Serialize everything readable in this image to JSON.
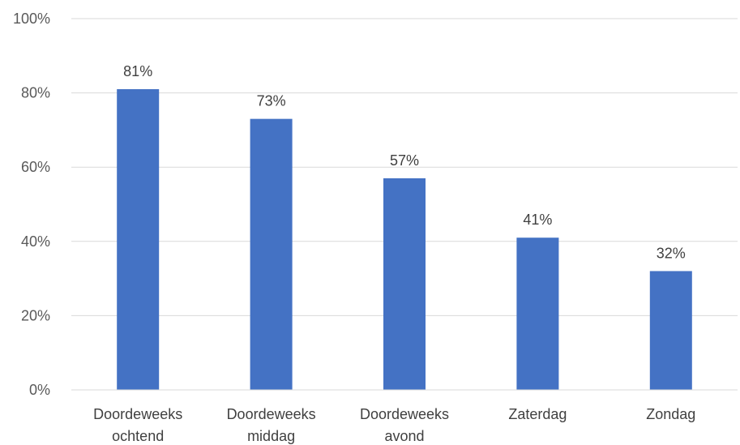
{
  "chart_data": {
    "type": "bar",
    "categories": [
      [
        "Doordeweeks",
        "ochtend"
      ],
      [
        "Doordeweeks",
        "middag"
      ],
      [
        "Doordeweeks",
        "avond"
      ],
      [
        "Zaterdag"
      ],
      [
        "Zondag"
      ]
    ],
    "values": [
      81,
      73,
      57,
      41,
      32
    ],
    "value_labels": [
      "81%",
      "73%",
      "57%",
      "41%",
      "32%"
    ],
    "ylim": [
      0,
      100
    ],
    "yticks": [
      0,
      20,
      40,
      60,
      80,
      100
    ],
    "ytick_labels": [
      "0%",
      "20%",
      "40%",
      "60%",
      "80%",
      "100%"
    ],
    "bar_color": "#4472C4",
    "grid": true,
    "title": "",
    "xlabel": "",
    "ylabel": ""
  }
}
